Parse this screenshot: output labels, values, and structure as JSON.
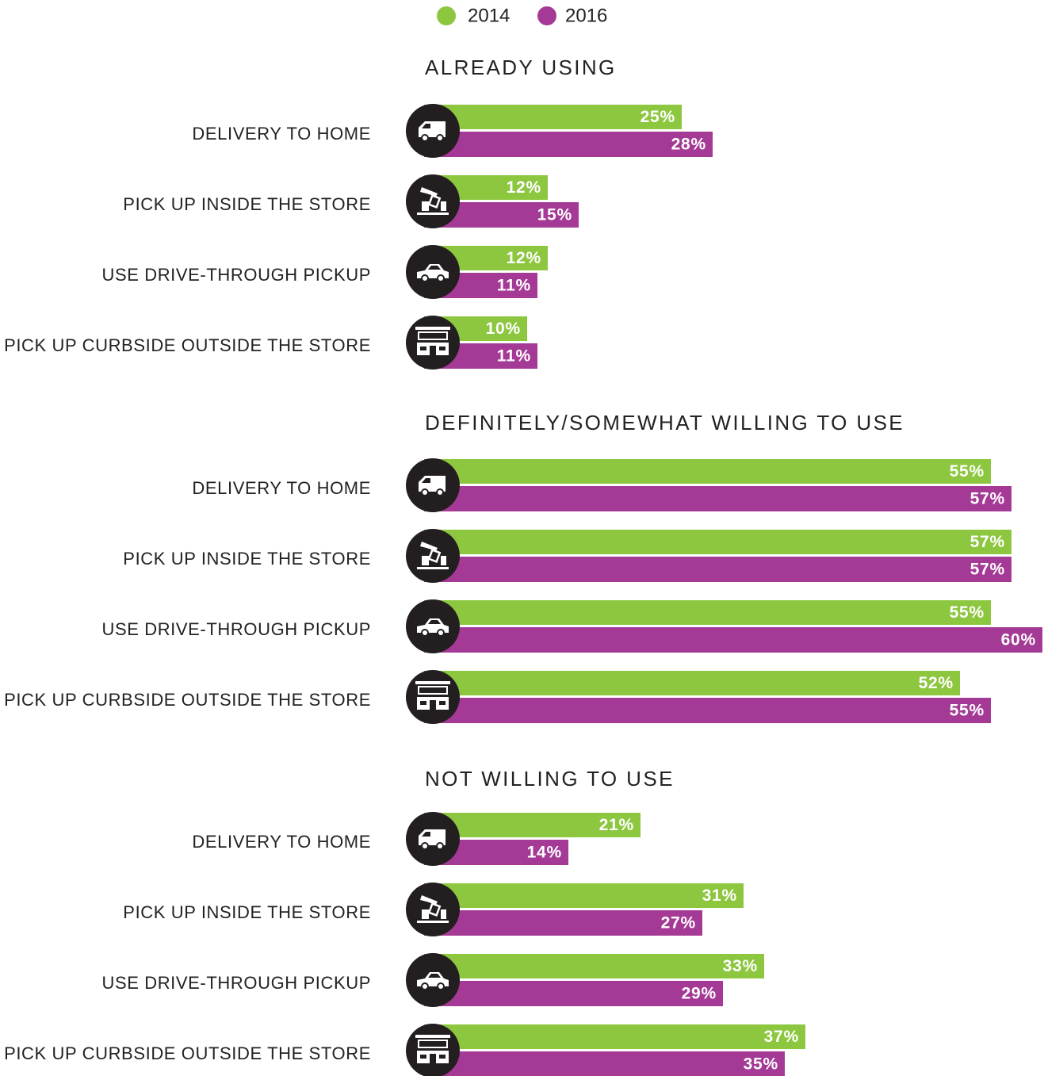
{
  "chart_data": {
    "type": "bar",
    "orientation": "horizontal",
    "series": [
      {
        "name": "2014",
        "color": "#8dc63f"
      },
      {
        "name": "2016",
        "color": "#a53a96"
      }
    ],
    "categories": [
      "DELIVERY TO HOME",
      "PICK UP INSIDE THE STORE",
      "USE DRIVE-THROUGH PICKUP",
      "PICK UP CURBSIDE OUTSIDE THE STORE"
    ],
    "xlim": [
      0,
      60
    ],
    "panels": [
      {
        "title": "ALREADY USING",
        "values": [
          [
            25,
            12,
            12,
            10
          ],
          [
            28,
            15,
            11,
            11
          ]
        ],
        "value_labels": [
          [
            "25%",
            "12%",
            "12%",
            "10%"
          ],
          [
            "28%",
            "15%",
            "11%",
            "11%"
          ]
        ]
      },
      {
        "title": "DEFINITELY/SOMEWHAT WILLING TO USE",
        "values": [
          [
            55,
            57,
            55,
            52
          ],
          [
            57,
            57,
            60,
            55
          ]
        ],
        "value_labels": [
          [
            "55%",
            "57%",
            "55%",
            "52%"
          ],
          [
            "57%",
            "57%",
            "60%",
            "55%"
          ]
        ]
      },
      {
        "title": "NOT WILLING TO USE",
        "values": [
          [
            21,
            31,
            33,
            37
          ],
          [
            14,
            27,
            29,
            35
          ]
        ],
        "value_labels": [
          [
            "21%",
            "31%",
            "33%",
            "37%"
          ],
          [
            "14%",
            "27%",
            "29%",
            "35%"
          ]
        ]
      }
    ]
  }
}
